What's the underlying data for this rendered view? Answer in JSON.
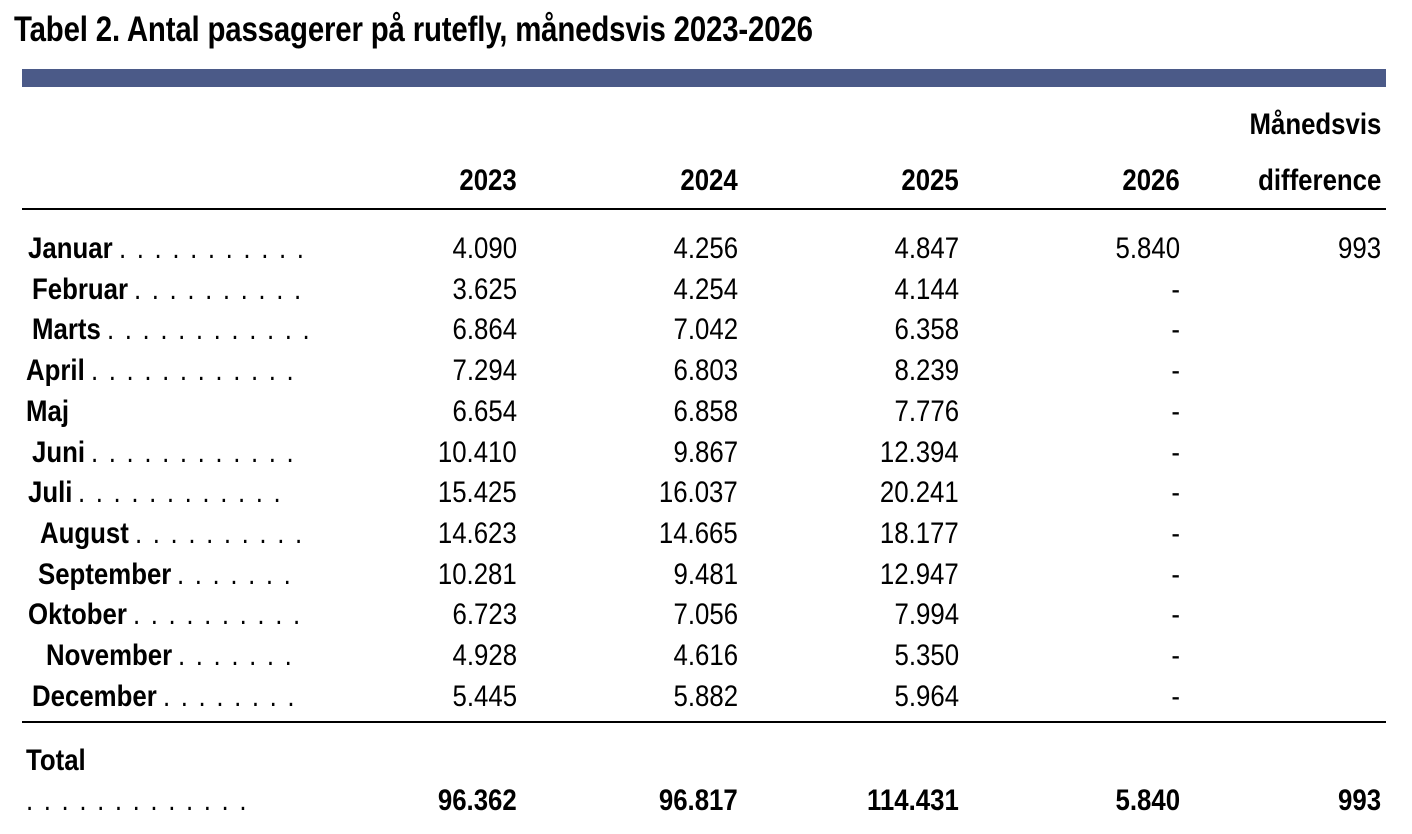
{
  "title": "Tabel 2. Antal passagerer på rutefly, månedsvis 2023-2026",
  "colors": {
    "band": "#4b5a88",
    "text": "#000000"
  },
  "chart_data": {
    "type": "table",
    "title": "Tabel 2. Antal passagerer på rutefly, månedsvis 2023-2026",
    "columns": [
      "2023",
      "2024",
      "2025",
      "2026"
    ],
    "diff_header": [
      "Månedsvis",
      "difference"
    ],
    "rows": [
      {
        "month": "Januar",
        "dots": ". . . . . . . . . . .",
        "v2023": "4.090",
        "v2024": "4.256",
        "v2025": "4.847",
        "v2026": "5.840",
        "diff": "993"
      },
      {
        "month": "Februar",
        "dots": ". . . . . . . . . .",
        "v2023": "3.625",
        "v2024": "4.254",
        "v2025": "4.144",
        "v2026": "-",
        "diff": ""
      },
      {
        "month": "Marts",
        "dots": ". . . . . . . . . . . .",
        "v2023": "6.864",
        "v2024": "7.042",
        "v2025": "6.358",
        "v2026": "-",
        "diff": ""
      },
      {
        "month": "April",
        "dots": ". . . . . . . . . . . .",
        "v2023": "7.294",
        "v2024": "6.803",
        "v2025": "8.239",
        "v2026": "-",
        "diff": ""
      },
      {
        "month": "Maj",
        "dots": "",
        "v2023": "6.654",
        "v2024": "6.858",
        "v2025": "7.776",
        "v2026": "-",
        "diff": ""
      },
      {
        "month": "Juni",
        "dots": ". . . . . . . . . . . .",
        "v2023": "10.410",
        "v2024": "9.867",
        "v2025": "12.394",
        "v2026": "-",
        "diff": ""
      },
      {
        "month": "Juli",
        "dots": ". . . . . . . . . . . .",
        "v2023": "15.425",
        "v2024": "16.037",
        "v2025": "20.241",
        "v2026": "-",
        "diff": ""
      },
      {
        "month": "August",
        "dots": ". . . . . . . . . .",
        "v2023": "14.623",
        "v2024": "14.665",
        "v2025": "18.177",
        "v2026": "-",
        "diff": ""
      },
      {
        "month": "September",
        "dots": ". . . . . . .",
        "v2023": "10.281",
        "v2024": "9.481",
        "v2025": "12.947",
        "v2026": "-",
        "diff": ""
      },
      {
        "month": "Oktober",
        "dots": ". . . . . . . . . .",
        "v2023": "6.723",
        "v2024": "7.056",
        "v2025": "7.994",
        "v2026": "-",
        "diff": ""
      },
      {
        "month": "November",
        "dots": ". . . . . . .",
        "v2023": "4.928",
        "v2024": "4.616",
        "v2025": "5.350",
        "v2026": "-",
        "diff": ""
      },
      {
        "month": "December",
        "dots": ". . . . . . . .",
        "v2023": "5.445",
        "v2024": "5.882",
        "v2025": "5.964",
        "v2026": "-",
        "diff": ""
      }
    ],
    "total": {
      "label": "Total",
      "dots": ". . . . . . . . . . . . .",
      "v2023": "96.362",
      "v2024": "96.817",
      "v2025": "114.431",
      "v2026": "5.840",
      "diff": "993"
    }
  }
}
